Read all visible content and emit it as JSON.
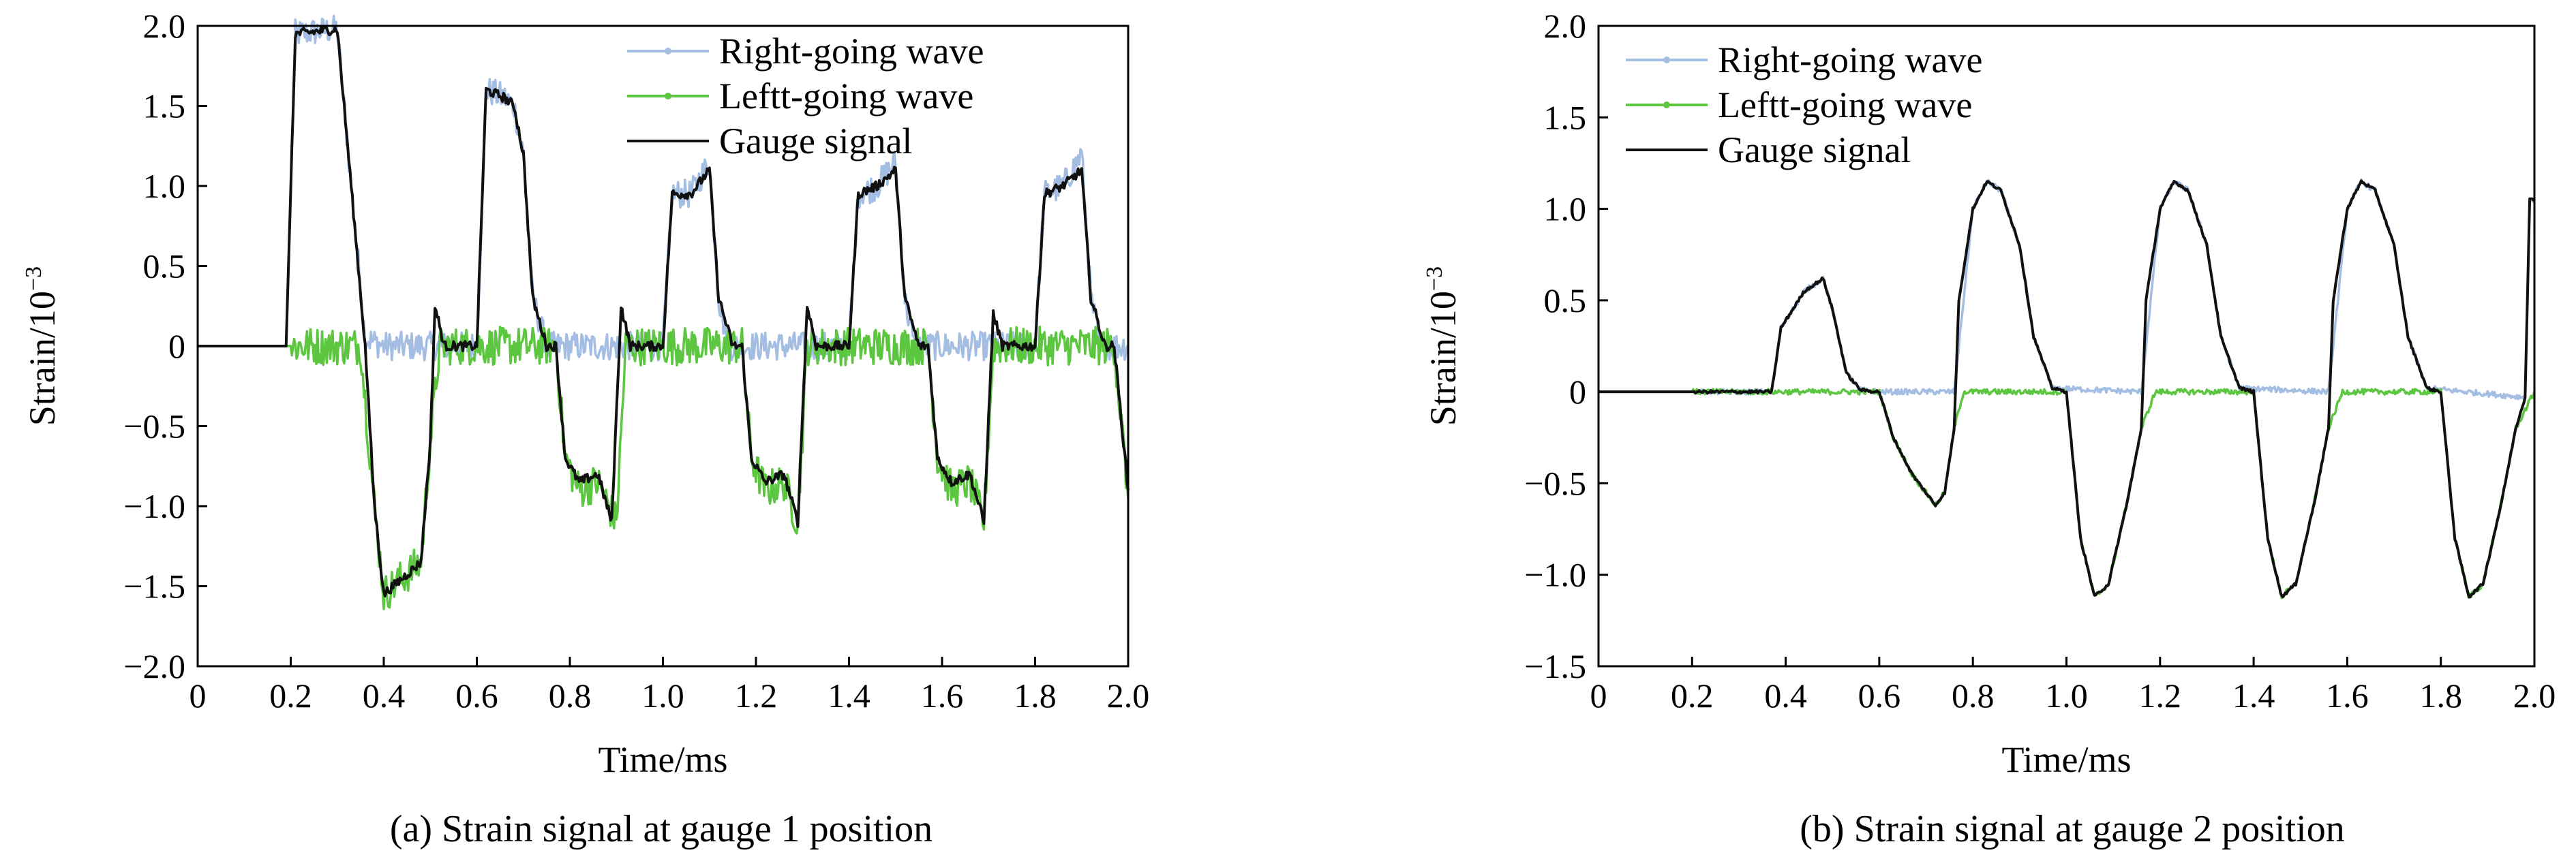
{
  "chart_data": [
    {
      "type": "line",
      "caption": "(a) Strain signal at gauge 1 position",
      "xlabel": "Time/ms",
      "ylabel_main": "Strain/10",
      "ylabel_sup": "−3",
      "xlim": [
        0,
        2.0
      ],
      "ylim": [
        -2.0,
        2.0
      ],
      "xticks": [
        "0",
        "0.2",
        "0.4",
        "0.6",
        "0.8",
        "1.0",
        "1.2",
        "1.4",
        "1.6",
        "1.8",
        "2.0"
      ],
      "yticks": [
        "−2.0",
        "−1.5",
        "−1.0",
        "−0.5",
        "0",
        "0.5",
        "1.0",
        "1.5",
        "2.0"
      ],
      "legend_position": "top-right",
      "series": [
        {
          "name": "Right-going wave",
          "color": "#a3bde3",
          "noise": 0.09,
          "points": [
            [
              0,
              0
            ],
            [
              0.19,
              0
            ],
            [
              0.21,
              1.95
            ],
            [
              0.3,
              1.98
            ],
            [
              0.33,
              1.0
            ],
            [
              0.36,
              0.05
            ],
            [
              0.4,
              0
            ],
            [
              0.6,
              0
            ],
            [
              0.62,
              1.6
            ],
            [
              0.66,
              1.55
            ],
            [
              0.68,
              1.5
            ],
            [
              0.7,
              1.2
            ],
            [
              0.72,
              0.3
            ],
            [
              0.75,
              0
            ],
            [
              1.0,
              0
            ],
            [
              1.02,
              0.95
            ],
            [
              1.06,
              0.95
            ],
            [
              1.1,
              1.15
            ],
            [
              1.12,
              0.3
            ],
            [
              1.14,
              0
            ],
            [
              1.4,
              0
            ],
            [
              1.42,
              0.95
            ],
            [
              1.46,
              1.0
            ],
            [
              1.5,
              1.15
            ],
            [
              1.52,
              0.3
            ],
            [
              1.54,
              0
            ],
            [
              1.8,
              0
            ],
            [
              1.82,
              0.95
            ],
            [
              1.86,
              1.0
            ],
            [
              1.9,
              1.2
            ],
            [
              1.92,
              0.3
            ],
            [
              1.94,
              0
            ],
            [
              2.0,
              0
            ]
          ]
        },
        {
          "name": "Leftt-going wave",
          "color": "#5cc640",
          "noise": 0.12,
          "points": [
            [
              0,
              0
            ],
            [
              0.35,
              0
            ],
            [
              0.38,
              -1.0
            ],
            [
              0.4,
              -1.55
            ],
            [
              0.46,
              -1.4
            ],
            [
              0.48,
              -1.35
            ],
            [
              0.5,
              -0.6
            ],
            [
              0.52,
              0
            ],
            [
              0.77,
              0
            ],
            [
              0.79,
              -0.7
            ],
            [
              0.82,
              -0.9
            ],
            [
              0.86,
              -0.85
            ],
            [
              0.9,
              -1.1
            ],
            [
              0.92,
              0
            ],
            [
              1.17,
              0
            ],
            [
              1.19,
              -0.7
            ],
            [
              1.22,
              -0.9
            ],
            [
              1.26,
              -0.85
            ],
            [
              1.29,
              -1.1
            ],
            [
              1.31,
              0
            ],
            [
              1.57,
              0
            ],
            [
              1.59,
              -0.7
            ],
            [
              1.62,
              -0.9
            ],
            [
              1.66,
              -0.85
            ],
            [
              1.69,
              -1.1
            ],
            [
              1.71,
              0
            ],
            [
              1.97,
              0
            ],
            [
              2.0,
              -0.95
            ]
          ]
        },
        {
          "name": "Gauge signal",
          "color": "#111111",
          "noise": 0.03,
          "points": [
            [
              0,
              0
            ],
            [
              0.19,
              0
            ],
            [
              0.21,
              1.95
            ],
            [
              0.3,
              1.98
            ],
            [
              0.33,
              1.0
            ],
            [
              0.36,
              0.0
            ],
            [
              0.38,
              -1.0
            ],
            [
              0.4,
              -1.55
            ],
            [
              0.46,
              -1.4
            ],
            [
              0.48,
              -1.35
            ],
            [
              0.5,
              -0.6
            ],
            [
              0.51,
              0.25
            ],
            [
              0.53,
              0
            ],
            [
              0.6,
              0
            ],
            [
              0.62,
              1.6
            ],
            [
              0.66,
              1.55
            ],
            [
              0.68,
              1.5
            ],
            [
              0.7,
              1.2
            ],
            [
              0.72,
              0.3
            ],
            [
              0.75,
              0
            ],
            [
              0.77,
              0
            ],
            [
              0.79,
              -0.7
            ],
            [
              0.82,
              -0.85
            ],
            [
              0.86,
              -0.8
            ],
            [
              0.89,
              -1.1
            ],
            [
              0.91,
              0.25
            ],
            [
              0.93,
              0
            ],
            [
              1.0,
              0
            ],
            [
              1.02,
              0.95
            ],
            [
              1.06,
              0.95
            ],
            [
              1.1,
              1.1
            ],
            [
              1.12,
              0.3
            ],
            [
              1.15,
              0
            ],
            [
              1.17,
              0
            ],
            [
              1.19,
              -0.7
            ],
            [
              1.22,
              -0.85
            ],
            [
              1.26,
              -0.8
            ],
            [
              1.29,
              -1.1
            ],
            [
              1.31,
              0.25
            ],
            [
              1.33,
              0
            ],
            [
              1.4,
              0
            ],
            [
              1.42,
              0.95
            ],
            [
              1.46,
              1.0
            ],
            [
              1.5,
              1.1
            ],
            [
              1.52,
              0.3
            ],
            [
              1.55,
              0
            ],
            [
              1.57,
              0
            ],
            [
              1.59,
              -0.7
            ],
            [
              1.62,
              -0.85
            ],
            [
              1.66,
              -0.8
            ],
            [
              1.69,
              -1.1
            ],
            [
              1.71,
              0.2
            ],
            [
              1.73,
              0
            ],
            [
              1.8,
              0
            ],
            [
              1.82,
              0.95
            ],
            [
              1.86,
              1.0
            ],
            [
              1.9,
              1.1
            ],
            [
              1.92,
              0.3
            ],
            [
              1.95,
              0
            ],
            [
              1.97,
              0
            ],
            [
              2.0,
              -0.9
            ]
          ]
        }
      ]
    },
    {
      "type": "line",
      "caption": "(b) Strain signal at gauge 2 position",
      "xlabel": "Time/ms",
      "ylabel_main": "Strain/10",
      "ylabel_sup": "−3",
      "xlim": [
        0,
        2.0
      ],
      "ylim": [
        -1.5,
        2.0
      ],
      "xticks": [
        "0",
        "0.2",
        "0.4",
        "0.6",
        "0.8",
        "1.0",
        "1.2",
        "1.4",
        "1.6",
        "1.8",
        "2.0"
      ],
      "yticks": [
        "−1.5",
        "−1.0",
        "−0.5",
        "0",
        "0.5",
        "1.0",
        "1.5",
        "2.0"
      ],
      "legend_position": "top-left",
      "series": [
        {
          "name": "Right-going wave",
          "color": "#a3bde3",
          "noise": 0.015,
          "points": [
            [
              0,
              0
            ],
            [
              0.37,
              0
            ],
            [
              0.39,
              0.35
            ],
            [
              0.44,
              0.55
            ],
            [
              0.48,
              0.62
            ],
            [
              0.5,
              0.45
            ],
            [
              0.53,
              0.1
            ],
            [
              0.56,
              0.01
            ],
            [
              0.6,
              0
            ],
            [
              0.76,
              0
            ],
            [
              0.8,
              1.0
            ],
            [
              0.83,
              1.15
            ],
            [
              0.86,
              1.1
            ],
            [
              0.9,
              0.8
            ],
            [
              0.93,
              0.3
            ],
            [
              0.97,
              0.02
            ],
            [
              1.16,
              0
            ],
            [
              1.2,
              1.0
            ],
            [
              1.23,
              1.15
            ],
            [
              1.26,
              1.1
            ],
            [
              1.3,
              0.8
            ],
            [
              1.33,
              0.3
            ],
            [
              1.37,
              0.02
            ],
            [
              1.56,
              0
            ],
            [
              1.6,
              1.0
            ],
            [
              1.63,
              1.15
            ],
            [
              1.66,
              1.1
            ],
            [
              1.7,
              0.8
            ],
            [
              1.73,
              0.3
            ],
            [
              1.77,
              0.02
            ],
            [
              1.98,
              -0.03
            ],
            [
              1.99,
              1.05
            ],
            [
              2.0,
              1.05
            ]
          ]
        },
        {
          "name": "Leftt-going wave",
          "color": "#5cc640",
          "noise": 0.015,
          "points": [
            [
              0,
              0
            ],
            [
              0.6,
              0
            ],
            [
              0.63,
              -0.25
            ],
            [
              0.67,
              -0.45
            ],
            [
              0.72,
              -0.62
            ],
            [
              0.74,
              -0.55
            ],
            [
              0.76,
              -0.2
            ],
            [
              0.78,
              0
            ],
            [
              1.0,
              0
            ],
            [
              1.03,
              -0.8
            ],
            [
              1.06,
              -1.12
            ],
            [
              1.09,
              -1.05
            ],
            [
              1.13,
              -0.6
            ],
            [
              1.16,
              -0.2
            ],
            [
              1.19,
              0
            ],
            [
              1.4,
              0
            ],
            [
              1.43,
              -0.8
            ],
            [
              1.46,
              -1.12
            ],
            [
              1.49,
              -1.05
            ],
            [
              1.53,
              -0.6
            ],
            [
              1.56,
              -0.2
            ],
            [
              1.59,
              0
            ],
            [
              1.8,
              0
            ],
            [
              1.83,
              -0.8
            ],
            [
              1.86,
              -1.12
            ],
            [
              1.89,
              -1.05
            ],
            [
              1.93,
              -0.6
            ],
            [
              1.96,
              -0.2
            ],
            [
              2.0,
              0
            ]
          ]
        },
        {
          "name": "Gauge signal",
          "color": "#111111",
          "noise": 0.008,
          "points": [
            [
              0,
              0
            ],
            [
              0.37,
              0
            ],
            [
              0.39,
              0.35
            ],
            [
              0.44,
              0.55
            ],
            [
              0.48,
              0.62
            ],
            [
              0.5,
              0.45
            ],
            [
              0.53,
              0.1
            ],
            [
              0.56,
              0.01
            ],
            [
              0.6,
              0
            ],
            [
              0.63,
              -0.25
            ],
            [
              0.67,
              -0.45
            ],
            [
              0.72,
              -0.62
            ],
            [
              0.74,
              -0.55
            ],
            [
              0.76,
              -0.2
            ],
            [
              0.77,
              0.5
            ],
            [
              0.8,
              1.0
            ],
            [
              0.83,
              1.15
            ],
            [
              0.86,
              1.1
            ],
            [
              0.9,
              0.8
            ],
            [
              0.93,
              0.3
            ],
            [
              0.97,
              0.02
            ],
            [
              1.0,
              0
            ],
            [
              1.03,
              -0.8
            ],
            [
              1.06,
              -1.12
            ],
            [
              1.09,
              -1.05
            ],
            [
              1.13,
              -0.6
            ],
            [
              1.16,
              -0.2
            ],
            [
              1.17,
              0.5
            ],
            [
              1.2,
              1.0
            ],
            [
              1.23,
              1.15
            ],
            [
              1.26,
              1.1
            ],
            [
              1.3,
              0.8
            ],
            [
              1.33,
              0.3
            ],
            [
              1.37,
              0.02
            ],
            [
              1.4,
              0
            ],
            [
              1.43,
              -0.8
            ],
            [
              1.46,
              -1.12
            ],
            [
              1.49,
              -1.05
            ],
            [
              1.53,
              -0.6
            ],
            [
              1.56,
              -0.2
            ],
            [
              1.57,
              0.5
            ],
            [
              1.6,
              1.0
            ],
            [
              1.63,
              1.15
            ],
            [
              1.66,
              1.1
            ],
            [
              1.7,
              0.8
            ],
            [
              1.73,
              0.3
            ],
            [
              1.77,
              0.02
            ],
            [
              1.8,
              0
            ],
            [
              1.83,
              -0.8
            ],
            [
              1.86,
              -1.12
            ],
            [
              1.89,
              -1.05
            ],
            [
              1.93,
              -0.6
            ],
            [
              1.96,
              -0.2
            ],
            [
              1.98,
              -0.03
            ],
            [
              1.99,
              1.05
            ],
            [
              2.0,
              1.05
            ]
          ]
        }
      ]
    }
  ]
}
